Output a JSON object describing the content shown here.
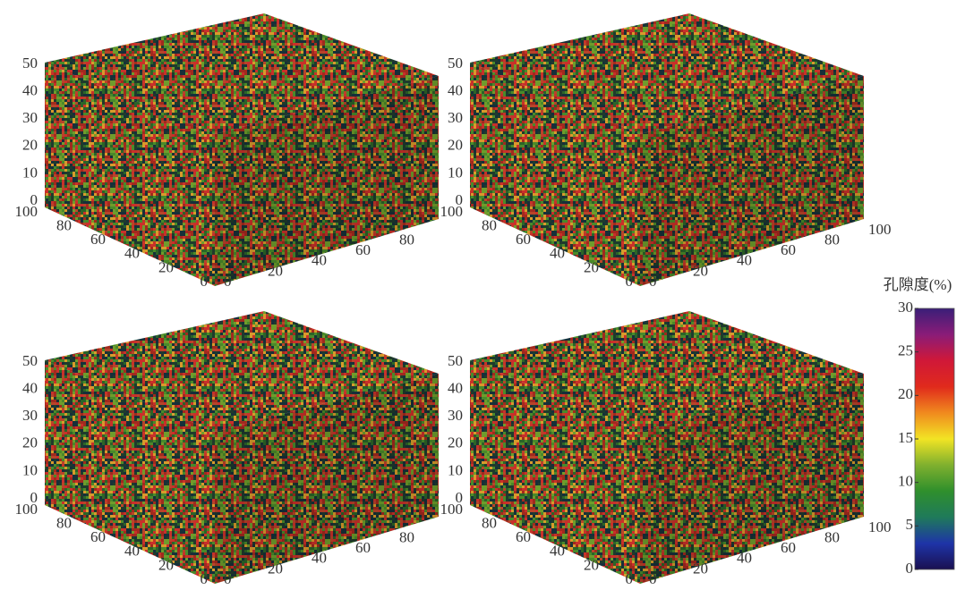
{
  "chart_data": [
    {
      "type": "voxel",
      "xlim": [
        0,
        100
      ],
      "ylim": [
        0,
        100
      ],
      "zlim": [
        0,
        50
      ],
      "xticks": [
        0,
        20,
        40,
        60,
        80
      ],
      "yticks": [
        0,
        20,
        40,
        60,
        80,
        100
      ],
      "zticks": [
        0,
        10,
        20,
        30,
        40,
        50
      ]
    },
    {
      "type": "voxel",
      "xlim": [
        0,
        100
      ],
      "ylim": [
        0,
        100
      ],
      "zlim": [
        0,
        50
      ],
      "xticks": [
        0,
        20,
        40,
        60,
        80,
        100
      ],
      "yticks": [
        0,
        20,
        40,
        60,
        80,
        100
      ],
      "zticks": [
        0,
        10,
        20,
        30,
        40,
        50
      ]
    },
    {
      "type": "voxel",
      "xlim": [
        0,
        100
      ],
      "ylim": [
        0,
        100
      ],
      "zlim": [
        0,
        50
      ],
      "xticks": [
        0,
        20,
        40,
        60,
        80
      ],
      "yticks": [
        0,
        20,
        40,
        60,
        80,
        100
      ],
      "zticks": [
        0,
        10,
        20,
        30,
        40,
        50
      ]
    },
    {
      "type": "voxel",
      "xlim": [
        0,
        100
      ],
      "ylim": [
        0,
        100
      ],
      "zlim": [
        0,
        50
      ],
      "xticks": [
        0,
        20,
        40,
        60,
        80,
        100
      ],
      "yticks": [
        0,
        20,
        40,
        60,
        80,
        100
      ],
      "zticks": [
        0,
        10,
        20,
        30,
        40,
        50
      ]
    }
  ],
  "colorbar": {
    "title": "孔隙度(%)",
    "lim": [
      0,
      30
    ],
    "ticks": [
      0,
      5,
      10,
      15,
      20,
      25,
      30
    ],
    "colors": [
      "#1a1050",
      "#1e34a8",
      "#1f7a5a",
      "#2f8f2c",
      "#7fb02e",
      "#f2e424",
      "#f08a1e",
      "#e02a1c",
      "#d01838",
      "#8a1c78",
      "#3a1e78"
    ]
  }
}
